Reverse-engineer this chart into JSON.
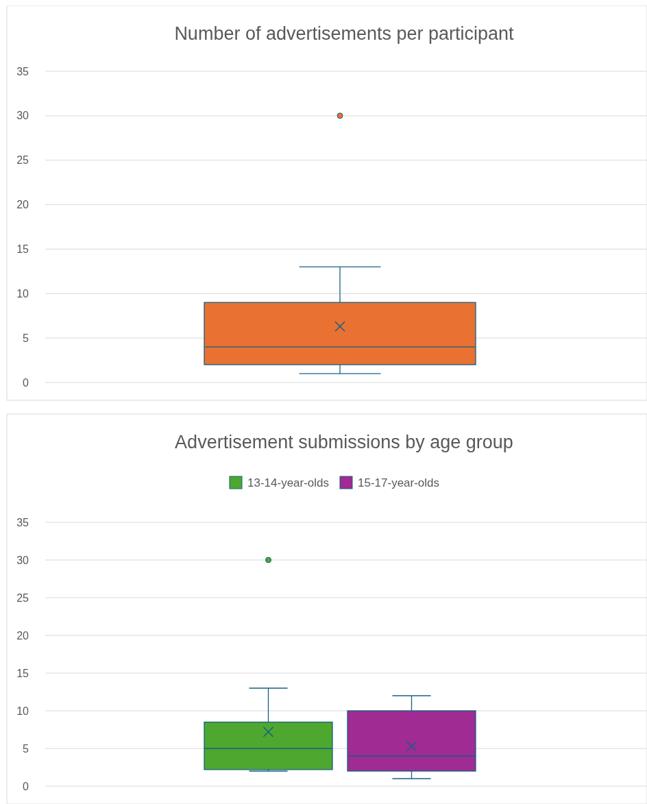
{
  "chart_data": [
    {
      "type": "box",
      "title": "Number of advertisements per participant",
      "categories": [
        null
      ],
      "ylim": [
        0,
        35
      ],
      "yticks": [
        0,
        5,
        10,
        15,
        20,
        25,
        30,
        35
      ],
      "grid": "y",
      "color": "#e97132",
      "boxes": [
        {
          "low": 1,
          "q1": 2,
          "median": 4,
          "q3": 9,
          "high": 13,
          "mean": 6.3,
          "outliers": [
            30
          ]
        }
      ]
    },
    {
      "type": "box",
      "title": "Advertisement submissions by age group",
      "categories": [
        null
      ],
      "ylim": [
        0,
        35
      ],
      "yticks": [
        0,
        5,
        10,
        15,
        20,
        25,
        30,
        35
      ],
      "grid": "y",
      "legend": "top",
      "series": [
        {
          "name": "13-14-year-olds",
          "color": "#4ea72e",
          "boxes": [
            {
              "low": 2,
              "q1": 2.2,
              "median": 5,
              "q3": 8.5,
              "high": 13,
              "mean": 7.2,
              "outliers": [
                30
              ]
            }
          ]
        },
        {
          "name": "15-17-year-olds",
          "color": "#a02b93",
          "boxes": [
            {
              "low": 1,
              "q1": 2,
              "median": 4,
              "q3": 10,
              "high": 12,
              "mean": 5.3
            }
          ]
        }
      ]
    }
  ]
}
